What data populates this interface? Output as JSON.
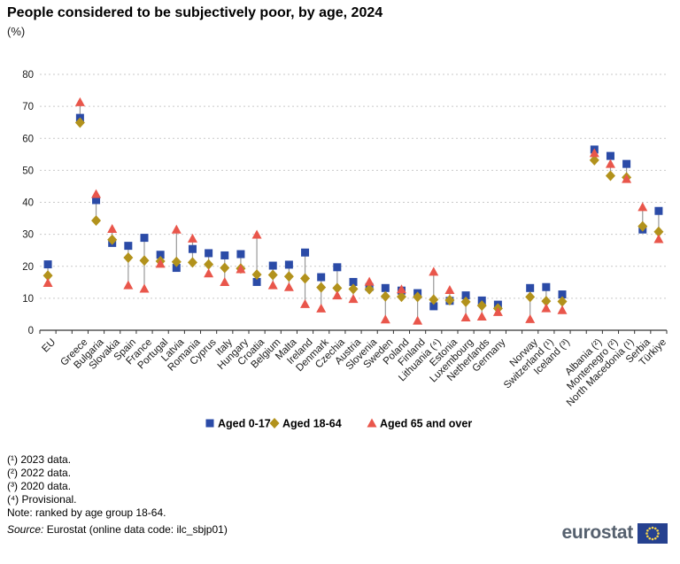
{
  "title": "People considered to be subjectively poor, by age, 2024",
  "subtitle": "(%)",
  "chart_data": {
    "type": "scatter",
    "title": "People considered to be subjectively poor, by age, 2024",
    "ylabel": "%",
    "ylim": [
      0,
      80
    ],
    "ytick_step": 10,
    "grid": "horizontal-dashed",
    "legend_position": "bottom-center",
    "categories": [
      "EU",
      "Greece",
      "Bulgaria",
      "Slovakia",
      "Spain",
      "France",
      "Portugal",
      "Latvia",
      "Romania",
      "Cyprus",
      "Italy",
      "Hungary",
      "Croatia",
      "Belgium",
      "Malta",
      "Ireland",
      "Denmark",
      "Czechia",
      "Austria",
      "Slovenia",
      "Sweden",
      "Poland",
      "Finland",
      "Lithuania (⁴)",
      "Estonia",
      "Luxembourg",
      "Netherlands",
      "Germany",
      "Norway",
      "Switzerland (¹)",
      "Iceland (³)",
      "Albania (²)",
      "Montenegro (²)",
      "North Macedonia (¹)",
      "Serbia",
      "Türkiye"
    ],
    "gap_before_indices": [
      1,
      28,
      31
    ],
    "series": [
      {
        "name": "Aged 0-17",
        "marker": "square",
        "color": "#2B4BA7",
        "values": [
          20.6,
          66.4,
          40.7,
          27.3,
          26.4,
          28.9,
          23.6,
          19.5,
          25.4,
          24.1,
          23.4,
          23.8,
          15.1,
          20.2,
          20.5,
          24.3,
          16.6,
          19.7,
          15.1,
          13.5,
          13.2,
          12.4,
          11.6,
          7.5,
          9.2,
          10.9,
          9.3,
          8.0,
          13.2,
          13.5,
          11.2,
          56.5,
          54.5,
          52.0,
          31.5,
          37.3
        ]
      },
      {
        "name": "Aged 18-64",
        "marker": "diamond",
        "color": "#B2921C",
        "values": [
          17.1,
          64.9,
          34.3,
          28.3,
          22.7,
          21.8,
          21.6,
          21.4,
          21.2,
          20.6,
          19.5,
          19.3,
          17.4,
          17.3,
          16.8,
          16.2,
          13.4,
          13.2,
          12.9,
          12.8,
          10.6,
          10.5,
          10.4,
          9.6,
          9.4,
          8.9,
          7.7,
          6.8,
          10.4,
          9.1,
          9.0,
          53.2,
          48.3,
          47.8,
          32.5,
          30.8
        ]
      },
      {
        "name": "Aged 65 and over",
        "marker": "triangle",
        "color": "#E9564B",
        "values": [
          14.8,
          71.3,
          42.6,
          31.7,
          14.1,
          13.0,
          20.8,
          31.5,
          28.7,
          17.8,
          15.1,
          19.1,
          29.9,
          14.1,
          13.5,
          8.2,
          6.8,
          10.9,
          9.8,
          15.2,
          3.4,
          12.8,
          3.0,
          18.3,
          12.6,
          4.0,
          4.3,
          5.7,
          3.5,
          6.9,
          6.3,
          55.4,
          52.0,
          47.3,
          38.5,
          28.5
        ]
      }
    ]
  },
  "footnotes": [
    "(¹) 2023 data.",
    "(²) 2022 data.",
    "(³) 2020 data.",
    "(⁴) Provisional.",
    "Note: ranked by age group 18-64."
  ],
  "source": {
    "label": "Source:",
    "text": " Eurostat (online data code: ilc_sbjp01)"
  },
  "logo": {
    "text": "eurostat"
  },
  "colors": {
    "grid": "#c9c9c9",
    "axis": "#333333",
    "connector": "#999999",
    "flag_blue": "#26418f",
    "flag_stars": "#f8d64b"
  }
}
